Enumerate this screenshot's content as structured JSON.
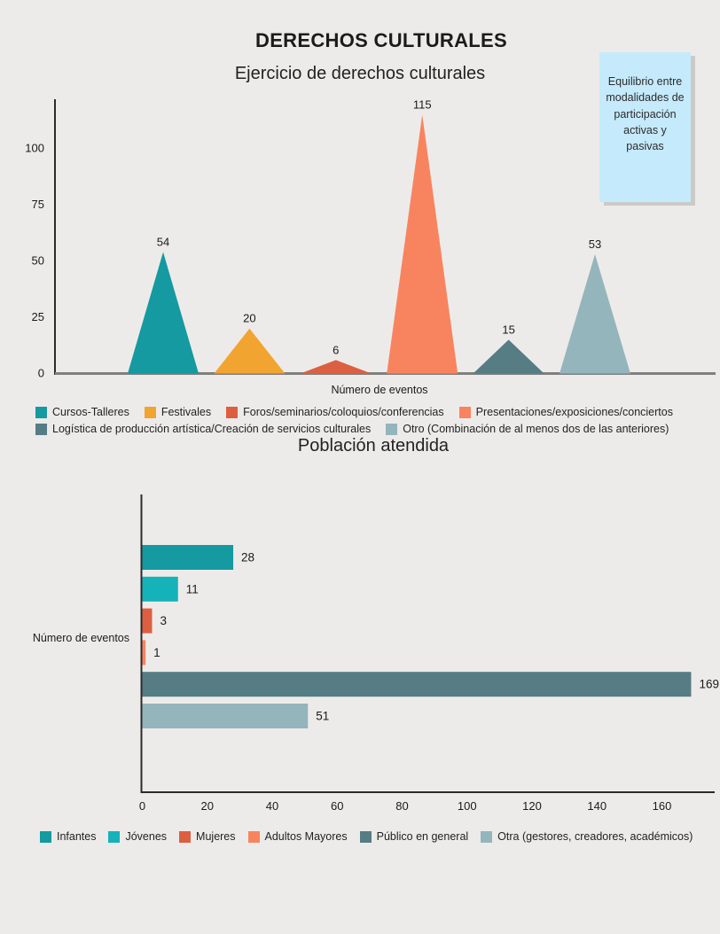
{
  "header": {
    "title": "DERECHOS CULTURALES"
  },
  "note": {
    "text": "Equilibrio entre modalidades de participación activas y pasivas",
    "bg_color": "#c5eafb"
  },
  "palette": {
    "background": "#edebe9",
    "axis_dark": "#2b2b2b",
    "axis_gray": "#7f7f7f",
    "text": "#1a1a1a"
  },
  "chart_data": [
    {
      "type": "area",
      "shape": "triangle-peaks",
      "title": "Ejercicio de derechos culturales",
      "xlabel": "Número de eventos",
      "ylim": [
        0,
        120
      ],
      "yticks": [
        0,
        25,
        50,
        75,
        100
      ],
      "grid": false,
      "legend_position": "bottom",
      "series": [
        {
          "name": "Cursos-Talleres",
          "value": 54,
          "color": "#149aa0"
        },
        {
          "name": "Festivales",
          "value": 20,
          "color": "#f2a431"
        },
        {
          "name": "Foros/seminarios/coloquios/conferencias",
          "value": 6,
          "color": "#dd5f41"
        },
        {
          "name": "Presentaciones/exposiciones/conciertos",
          "value": 115,
          "color": "#f8845f"
        },
        {
          "name": "Logística de producción artística/Creación de servicios culturales",
          "value": 15,
          "color": "#567c84"
        },
        {
          "name": "Otro (Combinación de al menos dos de las anteriores)",
          "value": 53,
          "color": "#94b5bc"
        }
      ],
      "legend_rows": [
        [
          0,
          1,
          2,
          3
        ],
        [
          4,
          5
        ]
      ]
    },
    {
      "type": "bar",
      "orientation": "horizontal",
      "title": "Población atendida",
      "axis_label": "Número de eventos",
      "xlim": [
        0,
        176
      ],
      "xticks": [
        0,
        20,
        40,
        60,
        80,
        100,
        120,
        140,
        160
      ],
      "grid": false,
      "legend_position": "bottom",
      "series": [
        {
          "name": "Infantes",
          "value": 28,
          "color": "#149aa0"
        },
        {
          "name": "Jóvenes",
          "value": 11,
          "color": "#16b2ba"
        },
        {
          "name": "Mujeres",
          "value": 3,
          "color": "#dd5f41"
        },
        {
          "name": "Adultos Mayores",
          "value": 1,
          "color": "#f8845f"
        },
        {
          "name": "Público en general",
          "value": 169,
          "color": "#567c84"
        },
        {
          "name": "Otra (gestores, creadores, académicos)",
          "value": 51,
          "color": "#94b5bc"
        }
      ]
    }
  ]
}
